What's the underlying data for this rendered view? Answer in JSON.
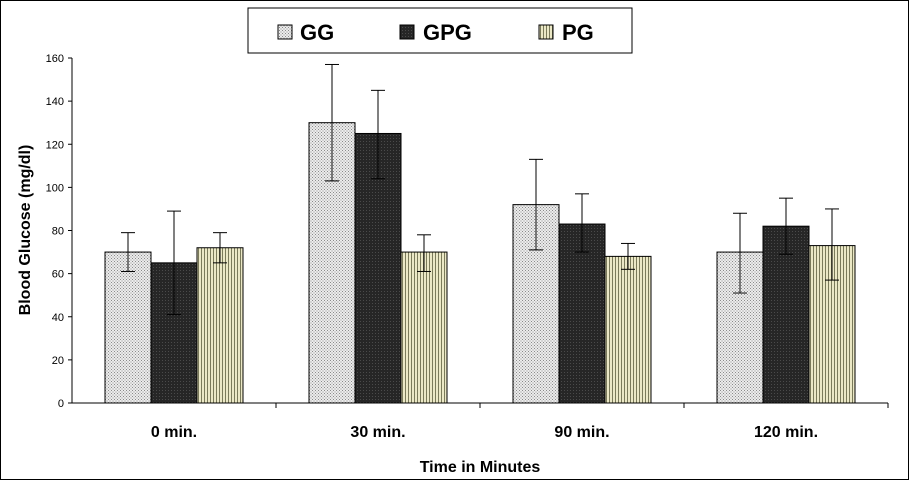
{
  "chart_data": {
    "type": "bar",
    "title": "",
    "xlabel": "Time in Minutes",
    "ylabel": "Blood Glucose (mg/dl)",
    "ylim": [
      0,
      160
    ],
    "yticks": [
      0,
      20,
      40,
      60,
      80,
      100,
      120,
      140,
      160
    ],
    "categories": [
      "0 min.",
      "30 min.",
      "90 min.",
      "120 min."
    ],
    "legend_position": "top",
    "grid": false,
    "series": [
      {
        "name": "GG",
        "color": "#d4d4d4",
        "pattern": "dotted-light",
        "values": [
          70,
          130,
          92,
          70
        ],
        "error_low": [
          61,
          103,
          71,
          51
        ],
        "error_high": [
          79,
          157,
          113,
          88
        ]
      },
      {
        "name": "GPG",
        "color": "#2e2e2e",
        "pattern": "solid-dark",
        "values": [
          65,
          125,
          83,
          82
        ],
        "error_low": [
          41,
          104,
          70,
          69
        ],
        "error_high": [
          89,
          145,
          97,
          95
        ]
      },
      {
        "name": "PG",
        "color": "#d8d6ae",
        "pattern": "striped-khaki",
        "values": [
          72,
          70,
          68,
          73
        ],
        "error_low": [
          65,
          61,
          62,
          57
        ],
        "error_high": [
          79,
          78,
          74,
          90
        ]
      }
    ]
  }
}
